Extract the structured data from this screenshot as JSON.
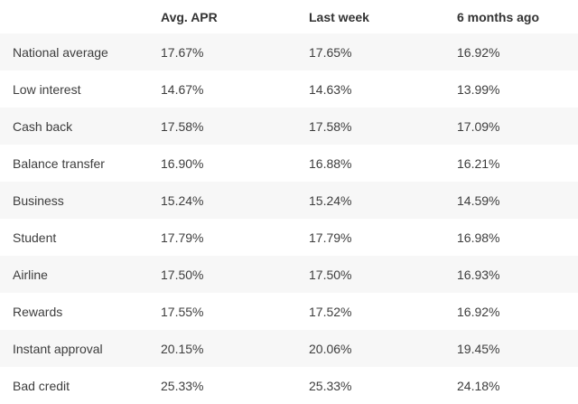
{
  "table": {
    "headers": [
      "",
      "Avg. APR",
      "Last week",
      "6 months ago"
    ],
    "rows": [
      [
        "National average",
        "17.67%",
        "17.65%",
        "16.92%"
      ],
      [
        "Low interest",
        "14.67%",
        "14.63%",
        "13.99%"
      ],
      [
        "Cash back",
        "17.58%",
        "17.58%",
        "17.09%"
      ],
      [
        "Balance transfer",
        "16.90%",
        "16.88%",
        "16.21%"
      ],
      [
        "Business",
        "15.24%",
        "15.24%",
        "14.59%"
      ],
      [
        "Student",
        "17.79%",
        "17.79%",
        "16.98%"
      ],
      [
        "Airline",
        "17.50%",
        "17.50%",
        "16.93%"
      ],
      [
        "Rewards",
        "17.55%",
        "17.52%",
        "16.92%"
      ],
      [
        "Instant approval",
        "20.15%",
        "20.06%",
        "19.45%"
      ],
      [
        "Bad credit",
        "25.33%",
        "25.33%",
        "24.18%"
      ]
    ]
  },
  "colors": {
    "stripe": "#f7f7f7",
    "background": "#ffffff",
    "text": "#333333"
  }
}
